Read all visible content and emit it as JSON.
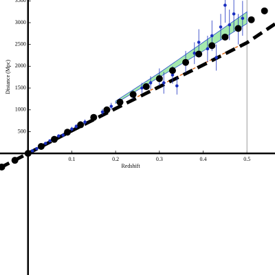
{
  "chart_data": {
    "type": "scatter",
    "xlabel": "Redshift",
    "ylabel": "Distance (Mpc)",
    "xlim": [
      -0.064,
      0.564
    ],
    "ylim": [
      -2790,
      3520
    ],
    "xticks": [
      0.1,
      0.2,
      0.3,
      0.4,
      0.5
    ],
    "yticks": [
      500,
      1000,
      1500,
      2000,
      2500,
      3000,
      3500
    ],
    "series": [
      {
        "style": "band",
        "color": "#7fe08a",
        "edge": "#2a4fd0",
        "x": [
          0.2,
          0.3,
          0.4,
          0.5
        ],
        "lower": [
          1150,
          1750,
          2350,
          2980
        ],
        "upper": [
          1200,
          1850,
          2550,
          3250
        ]
      },
      {
        "style": "dashed",
        "color": "#e07020",
        "width": 1.5,
        "x": [
          0.25,
          0.5
        ],
        "values": [
          1300,
          2560
        ]
      },
      {
        "style": "dashed",
        "color": "#000000",
        "width": 5,
        "x": [
          -0.064,
          0,
          0.1,
          0.2,
          0.3,
          0.4,
          0.5,
          0.564
        ],
        "values": [
          -330,
          0,
          520,
          1030,
          1530,
          2030,
          2540,
          2970
        ]
      },
      {
        "style": "points",
        "color": "#1a2fc0",
        "x": [
          0.01,
          0.02,
          0.03,
          0.04,
          0.05,
          0.06,
          0.07,
          0.08,
          0.09,
          0.1,
          0.11,
          0.12,
          0.13,
          0.15,
          0.17,
          0.19,
          0.21,
          0.24,
          0.26,
          0.28,
          0.3,
          0.31,
          0.33,
          0.34,
          0.36,
          0.38,
          0.39,
          0.41,
          0.42,
          0.43,
          0.44,
          0.45,
          0.46,
          0.47,
          0.48,
          0.49
        ],
        "values": [
          60,
          110,
          170,
          230,
          290,
          330,
          400,
          420,
          480,
          560,
          620,
          680,
          720,
          830,
          950,
          1080,
          1180,
          1350,
          1500,
          1620,
          1750,
          1620,
          1800,
          1550,
          2100,
          2300,
          2550,
          2400,
          2700,
          2200,
          2900,
          3400,
          2950,
          3200,
          2850,
          3100
        ],
        "errors": [
          20,
          25,
          30,
          30,
          30,
          40,
          40,
          40,
          50,
          50,
          50,
          60,
          60,
          70,
          70,
          80,
          80,
          100,
          120,
          150,
          200,
          250,
          200,
          200,
          250,
          250,
          300,
          300,
          350,
          300,
          300,
          400,
          350,
          400,
          350,
          400
        ]
      },
      {
        "style": "dots",
        "color": "#000000",
        "x": [
          -0.06,
          -0.03,
          0,
          0.03,
          0.06,
          0.09,
          0.12,
          0.15,
          0.18,
          0.21,
          0.24,
          0.27,
          0.3,
          0.33,
          0.36,
          0.39,
          0.42,
          0.45,
          0.48,
          0.51,
          0.54
        ],
        "values": [
          -313,
          -158,
          0,
          160,
          323,
          488,
          656,
          827,
          999,
          1175,
          1353,
          1533,
          1716,
          1901,
          2089,
          2280,
          2473,
          2669,
          2867,
          3067,
          3270
        ]
      }
    ]
  }
}
